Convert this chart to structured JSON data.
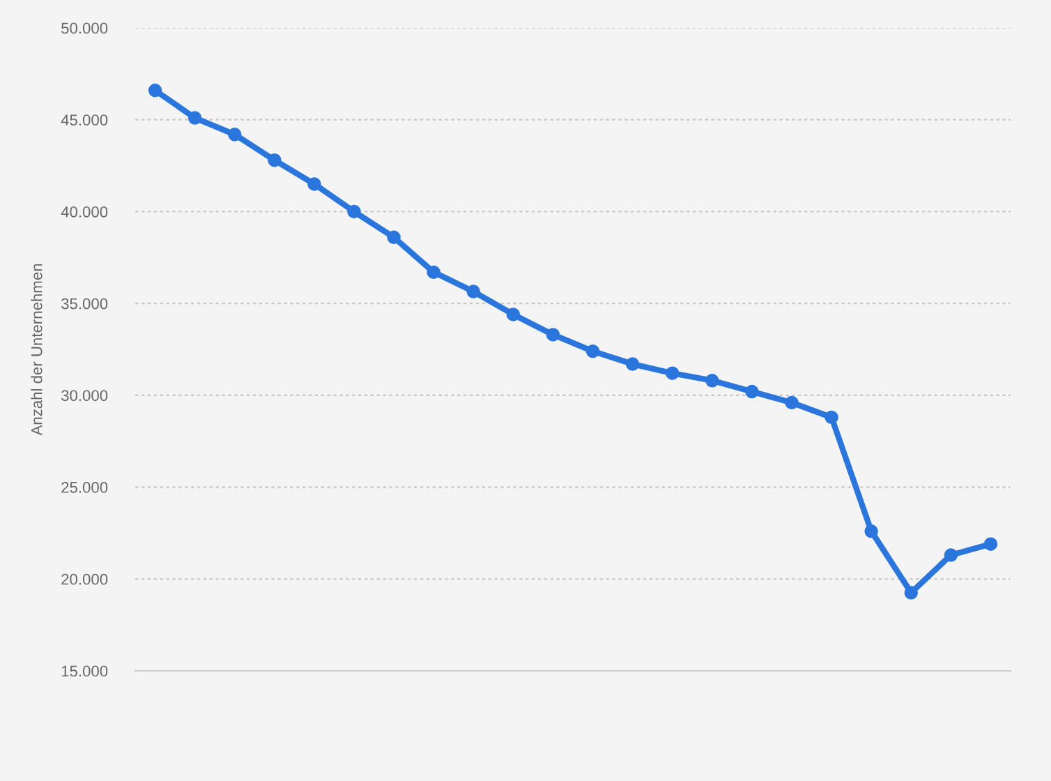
{
  "chart_data": {
    "type": "line",
    "ylabel": "Anzahl der Unternehmen",
    "categories": [
      null,
      null,
      null,
      null,
      null,
      null,
      null,
      null,
      null,
      null,
      null,
      null,
      null,
      null,
      null,
      null,
      null,
      null,
      null,
      null,
      null,
      null
    ],
    "series": [
      {
        "color": "#2a76dd",
        "values": [
          46600,
          45100,
          44200,
          42800,
          41500,
          40000,
          38600,
          36700,
          35650,
          34400,
          33300,
          32400,
          31700,
          31200,
          30800,
          30200,
          29600,
          28800,
          22600,
          19250,
          21300,
          21900
        ]
      }
    ],
    "ylim": [
      15000,
      50000
    ],
    "yticks": [
      {
        "value": 15000,
        "label": "15.000"
      },
      {
        "value": 20000,
        "label": "20.000"
      },
      {
        "value": 25000,
        "label": "25.000"
      },
      {
        "value": 30000,
        "label": "30.000"
      },
      {
        "value": 35000,
        "label": "35.000"
      },
      {
        "value": 40000,
        "label": "40.000"
      },
      {
        "value": 45000,
        "label": "45.000"
      },
      {
        "value": 50000,
        "label": "50.000"
      }
    ],
    "grid": "y",
    "marker": "circle",
    "line_style": "solid",
    "tick_labels": "y"
  }
}
